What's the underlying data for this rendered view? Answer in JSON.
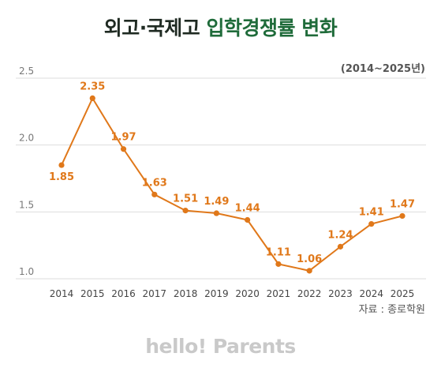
{
  "title_part1": "외고·국제고",
  "title_part2": "입학경쟁률 변화",
  "period": "(2014~2025년)",
  "source": "자료 : 종로학원",
  "brand": "hello! Parents",
  "colors": {
    "line": "#e0781a",
    "label": "#e0781a",
    "grid": "#dddddd",
    "title_accent": "#1f6b3a"
  },
  "chart_data": {
    "type": "line",
    "title": "외고·국제고 입학경쟁률 변화",
    "subtitle": "(2014~2025년)",
    "x": [
      "2014",
      "2015",
      "2016",
      "2017",
      "2018",
      "2019",
      "2020",
      "2021",
      "2022",
      "2023",
      "2024",
      "2025"
    ],
    "series": [
      {
        "values": [
          1.85,
          2.35,
          1.97,
          1.63,
          1.51,
          1.49,
          1.44,
          1.11,
          1.06,
          1.24,
          1.41,
          1.47
        ],
        "labels": [
          "1.85",
          "2.35",
          "1.97",
          "1.63",
          "1.51",
          "1.49",
          "1.44",
          "1.11",
          "1.06",
          "1.24",
          "1.41",
          "1.47"
        ]
      }
    ],
    "yticks": [
      "1.0",
      "1.5",
      "2.0",
      "2.5"
    ],
    "ylim": [
      1.0,
      2.5
    ],
    "grid": true
  }
}
